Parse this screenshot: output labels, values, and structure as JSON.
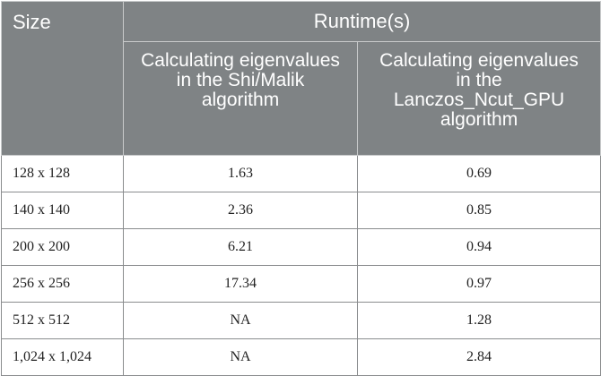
{
  "table": {
    "header": {
      "size": "Size",
      "runtime": "Runtime(s)",
      "col2": "Calculating eigenvalues in the Shi/Malik algorithm",
      "col3": "Calculating eigenvalues in the Lanczos_Ncut_GPU algorithm"
    },
    "rows": [
      {
        "size": "128 x 128",
        "shi_malik": "1.63",
        "lanczos": "0.69"
      },
      {
        "size": "140 x 140",
        "shi_malik": "2.36",
        "lanczos": "0.85"
      },
      {
        "size": "200 x 200",
        "shi_malik": "6.21",
        "lanczos": "0.94"
      },
      {
        "size": "256 x 256",
        "shi_malik": "17.34",
        "lanczos": "0.97"
      },
      {
        "size": "512 x 512",
        "shi_malik": "NA",
        "lanczos": "1.28"
      },
      {
        "size": "1,024 x 1,024",
        "shi_malik": "NA",
        "lanczos": "2.84"
      }
    ]
  }
}
